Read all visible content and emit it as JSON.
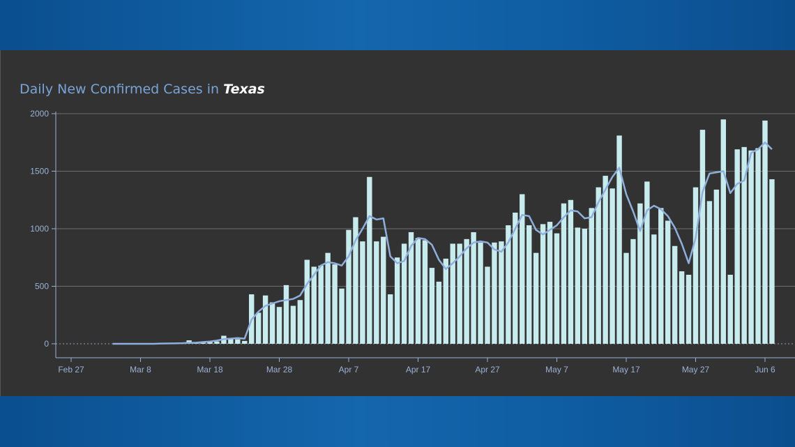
{
  "chart_data": {
    "type": "bar",
    "title_prefix": "Daily New Confirmed Cases in",
    "title_state": "Texas",
    "x_tick_labels": [
      "Feb 27",
      "Mar 8",
      "Mar 18",
      "Mar 28",
      "Apr 7",
      "Apr 17",
      "Apr 27",
      "May 7",
      "May 17",
      "May 27",
      "Jun 6"
    ],
    "y_tick_labels": [
      "0",
      "500",
      "1000",
      "1500",
      "2000"
    ],
    "ylim": [
      0,
      2000
    ],
    "grid": true,
    "start_date": "Mar 4",
    "series": [
      {
        "type": "bar",
        "values": [
          0,
          0,
          0,
          0,
          0,
          0,
          0,
          5,
          0,
          5,
          0,
          30,
          10,
          10,
          15,
          20,
          70,
          50,
          40,
          25,
          430,
          270,
          420,
          360,
          320,
          510,
          330,
          380,
          730,
          670,
          680,
          790,
          690,
          480,
          990,
          1100,
          890,
          1450,
          890,
          930,
          430,
          750,
          870,
          970,
          920,
          900,
          660,
          540,
          740,
          870,
          870,
          910,
          970,
          880,
          670,
          880,
          890,
          1030,
          1140,
          1300,
          1030,
          790,
          1040,
          1060,
          960,
          1220,
          1250,
          1010,
          1000,
          1180,
          1360,
          1460,
          1350,
          1810,
          790,
          910,
          1220,
          1410,
          950,
          1180,
          1070,
          850,
          630,
          600,
          1360,
          1860,
          1240,
          1340,
          1950,
          600,
          1690,
          1710,
          1680,
          1700,
          1940,
          1430
        ]
      },
      {
        "type": "line",
        "values": [
          0,
          0,
          0,
          0,
          0,
          0,
          0,
          2,
          3,
          4,
          5,
          8,
          10,
          15,
          20,
          28,
          40,
          45,
          50,
          45,
          210,
          280,
          330,
          350,
          370,
          380,
          390,
          420,
          520,
          600,
          680,
          710,
          700,
          680,
          760,
          900,
          1000,
          1110,
          1080,
          1090,
          760,
          700,
          720,
          850,
          920,
          910,
          860,
          730,
          650,
          700,
          760,
          830,
          880,
          890,
          880,
          820,
          800,
          880,
          1000,
          1120,
          1110,
          990,
          950,
          990,
          1030,
          1100,
          1160,
          1150,
          1090,
          1100,
          1230,
          1340,
          1450,
          1530,
          1300,
          1150,
          980,
          1160,
          1200,
          1170,
          1110,
          1010,
          870,
          700,
          920,
          1320,
          1480,
          1490,
          1500,
          1310,
          1390,
          1420,
          1660,
          1690,
          1750,
          1690
        ]
      }
    ]
  }
}
